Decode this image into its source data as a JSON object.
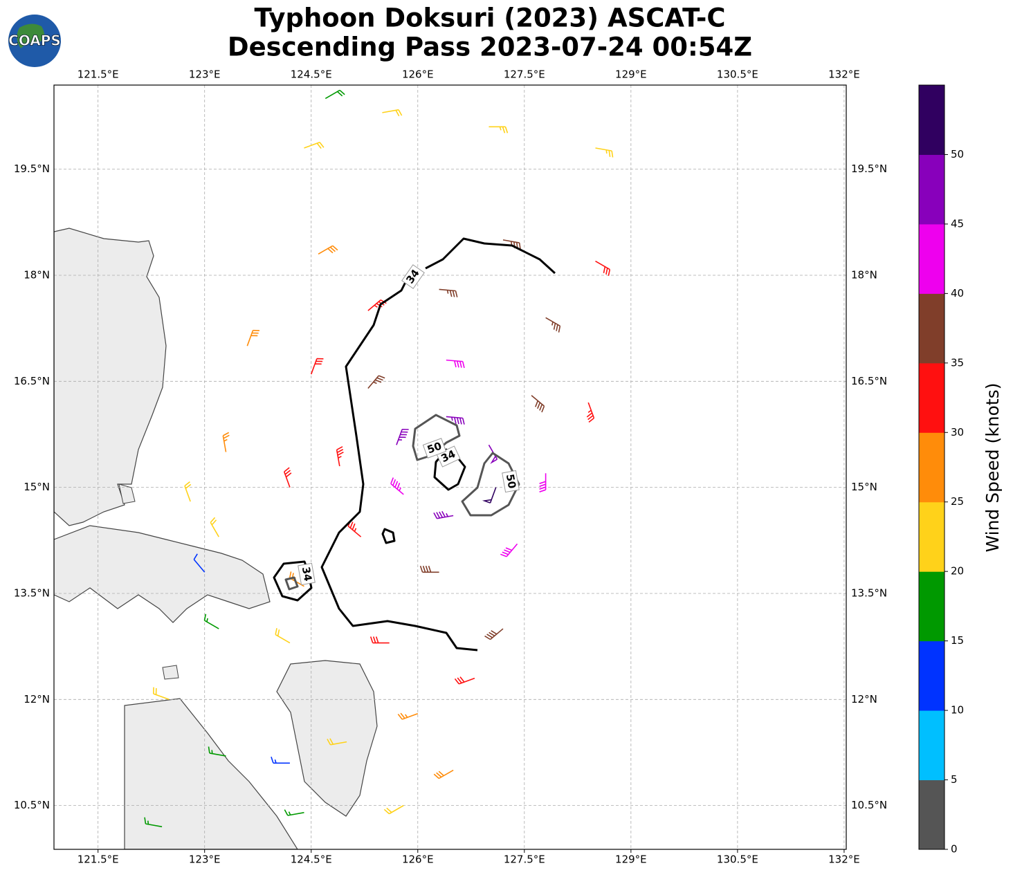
{
  "map": {
    "title": "Typhoon Doksuri (2023) ASCAT-C",
    "subtitle": "Descending Pass 2023-07-24 00:54Z",
    "logo": "COAPS",
    "xlim": [
      120.88,
      132.03
    ],
    "ylim": [
      9.88,
      20.69
    ],
    "xticks": [
      {
        "value": 121.5,
        "label": "121.5°E"
      },
      {
        "value": 123,
        "label": "123°E"
      },
      {
        "value": 124.5,
        "label": "124.5°E"
      },
      {
        "value": 126,
        "label": "126°E"
      },
      {
        "value": 127.5,
        "label": "127.5°E"
      },
      {
        "value": 129,
        "label": "129°E"
      },
      {
        "value": 130.5,
        "label": "130.5°E"
      },
      {
        "value": 132,
        "label": "132°E"
      }
    ],
    "yticks": [
      {
        "value": 10.5,
        "label": "10.5°N"
      },
      {
        "value": 12,
        "label": "12°N"
      },
      {
        "value": 13.5,
        "label": "13.5°N"
      },
      {
        "value": 15,
        "label": "15°N"
      },
      {
        "value": 16.5,
        "label": "16.5°N"
      },
      {
        "value": 18,
        "label": "18°N"
      },
      {
        "value": 19.5,
        "label": "19.5°N"
      }
    ],
    "grid": true,
    "colorbar": {
      "label": "Wind Speed (knots)",
      "clim": [
        0,
        55
      ],
      "ticks": [
        0,
        5,
        10,
        15,
        20,
        25,
        30,
        35,
        40,
        45,
        50
      ],
      "colors": [
        "#555555",
        "#00bfff",
        "#0033ff",
        "#009900",
        "#ffd21a",
        "#ff8c0a",
        "#ff1010",
        "#803e2a",
        "#ee00ee",
        "#8800bb",
        "#300060"
      ]
    },
    "contour_levels": [
      34,
      50
    ],
    "barbs": [
      {
        "lon": 126.4,
        "lat": 16.0,
        "speed": 47,
        "dir": 95
      },
      {
        "lon": 127.0,
        "lat": 15.6,
        "speed": 48,
        "dir": 150
      },
      {
        "lon": 127.1,
        "lat": 15.0,
        "speed": 52,
        "dir": 200
      },
      {
        "lon": 126.5,
        "lat": 14.6,
        "speed": 47,
        "dir": 260
      },
      {
        "lon": 125.8,
        "lat": 14.9,
        "speed": 43,
        "dir": 310
      },
      {
        "lon": 125.7,
        "lat": 15.6,
        "speed": 45,
        "dir": 20
      },
      {
        "lon": 126.4,
        "lat": 16.8,
        "speed": 42,
        "dir": 95
      },
      {
        "lon": 127.6,
        "lat": 16.3,
        "speed": 38,
        "dir": 130
      },
      {
        "lon": 127.8,
        "lat": 15.2,
        "speed": 42,
        "dir": 180
      },
      {
        "lon": 127.4,
        "lat": 14.2,
        "speed": 42,
        "dir": 220
      },
      {
        "lon": 126.3,
        "lat": 13.8,
        "speed": 38,
        "dir": 270
      },
      {
        "lon": 125.2,
        "lat": 14.3,
        "speed": 33,
        "dir": 310
      },
      {
        "lon": 124.9,
        "lat": 15.3,
        "speed": 33,
        "dir": 350
      },
      {
        "lon": 125.3,
        "lat": 16.4,
        "speed": 37,
        "dir": 40
      },
      {
        "lon": 126.3,
        "lat": 17.8,
        "speed": 37,
        "dir": 95
      },
      {
        "lon": 127.8,
        "lat": 17.4,
        "speed": 37,
        "dir": 120
      },
      {
        "lon": 128.4,
        "lat": 16.2,
        "speed": 33,
        "dir": 160
      },
      {
        "lon": 127.2,
        "lat": 13.0,
        "speed": 38,
        "dir": 230
      },
      {
        "lon": 125.6,
        "lat": 12.8,
        "speed": 32,
        "dir": 270
      },
      {
        "lon": 124.4,
        "lat": 13.6,
        "speed": 27,
        "dir": 300
      },
      {
        "lon": 124.2,
        "lat": 15.0,
        "speed": 31,
        "dir": 340
      },
      {
        "lon": 124.5,
        "lat": 16.6,
        "speed": 31,
        "dir": 20
      },
      {
        "lon": 125.3,
        "lat": 17.5,
        "speed": 33,
        "dir": 50
      },
      {
        "lon": 127.2,
        "lat": 18.5,
        "speed": 36,
        "dir": 100
      },
      {
        "lon": 128.5,
        "lat": 18.2,
        "speed": 31,
        "dir": 120
      },
      {
        "lon": 124.6,
        "lat": 18.3,
        "speed": 28,
        "dir": 60
      },
      {
        "lon": 124.4,
        "lat": 19.8,
        "speed": 22,
        "dir": 70
      },
      {
        "lon": 125.5,
        "lat": 20.3,
        "speed": 22,
        "dir": 80
      },
      {
        "lon": 127.0,
        "lat": 20.1,
        "speed": 24,
        "dir": 90
      },
      {
        "lon": 128.5,
        "lat": 19.8,
        "speed": 24,
        "dir": 100
      },
      {
        "lon": 123.6,
        "lat": 17.0,
        "speed": 28,
        "dir": 20
      },
      {
        "lon": 123.3,
        "lat": 15.5,
        "speed": 27,
        "dir": 350
      },
      {
        "lon": 122.8,
        "lat": 14.8,
        "speed": 22,
        "dir": 340
      },
      {
        "lon": 126.8,
        "lat": 12.3,
        "speed": 32,
        "dir": 250
      },
      {
        "lon": 126.5,
        "lat": 11.0,
        "speed": 28,
        "dir": 240
      },
      {
        "lon": 125.8,
        "lat": 10.5,
        "speed": 22,
        "dir": 240
      },
      {
        "lon": 126.0,
        "lat": 11.8,
        "speed": 27,
        "dir": 250
      },
      {
        "lon": 123.2,
        "lat": 13.0,
        "speed": 17,
        "dir": 300
      },
      {
        "lon": 122.5,
        "lat": 12.0,
        "speed": 22,
        "dir": 290
      },
      {
        "lon": 123.3,
        "lat": 11.2,
        "speed": 17,
        "dir": 280
      },
      {
        "lon": 122.4,
        "lat": 10.2,
        "speed": 16,
        "dir": 280
      },
      {
        "lon": 124.4,
        "lat": 10.4,
        "speed": 17,
        "dir": 260
      },
      {
        "lon": 124.7,
        "lat": 20.5,
        "speed": 18,
        "dir": 60
      },
      {
        "lon": 123.2,
        "lat": 14.3,
        "speed": 22,
        "dir": 330
      },
      {
        "lon": 124.2,
        "lat": 12.8,
        "speed": 22,
        "dir": 300
      },
      {
        "lon": 125.0,
        "lat": 11.4,
        "speed": 20,
        "dir": 260
      },
      {
        "lon": 123.0,
        "lat": 13.8,
        "speed": 12,
        "dir": 320
      },
      {
        "lon": 124.2,
        "lat": 11.1,
        "speed": 13,
        "dir": 270
      }
    ]
  }
}
